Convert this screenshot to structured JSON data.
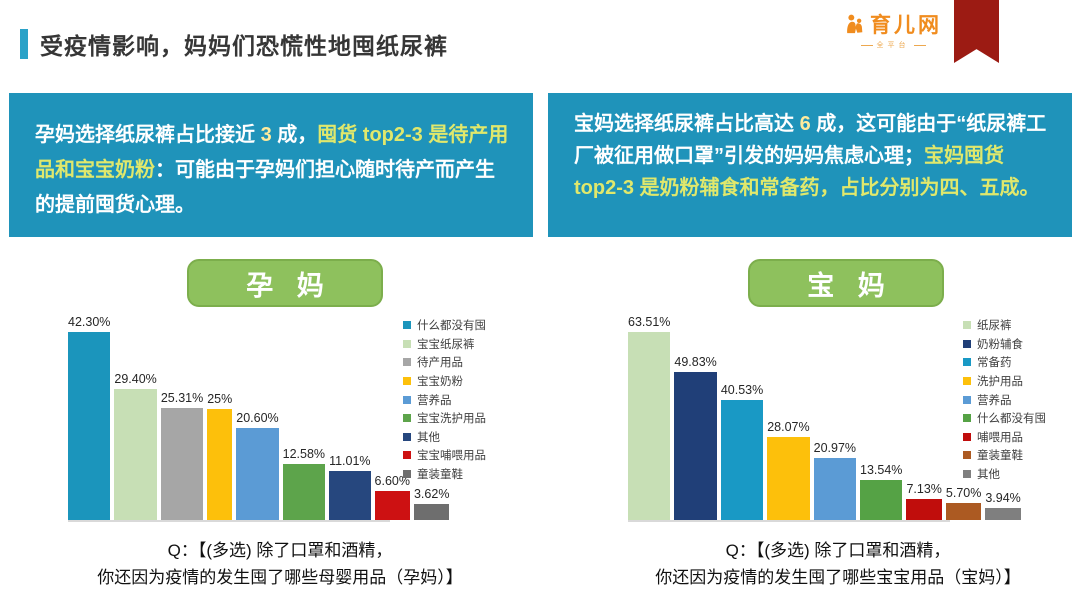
{
  "header": {
    "title": "受疫情影响，妈妈们恐慌性地囤纸尿裤",
    "logo_text": "育儿网",
    "logo_subtext": "全平台"
  },
  "colors": {
    "box_background": "#1f93ba",
    "title_accent": "#2aa2c8",
    "ribbon": "#9c1b13",
    "logo_orange": "#f08c1e",
    "pill_green": "#8ec15d",
    "highlight_yellow": "#ffeb9c",
    "highlight_greenyellow": "#e0e86c"
  },
  "insight_boxes": {
    "left": {
      "segments": [
        {
          "text": "孕妈选择纸尿裤占比接近 ",
          "color": "#ffffff"
        },
        {
          "text": "3",
          "color": "#ffeb9c"
        },
        {
          "text": " 成，",
          "color": "#ffffff"
        },
        {
          "text": "囤货 top2-3 是待产用品和宝宝奶粉",
          "color": "#e0e86c"
        },
        {
          "text": "：可能由于孕妈们担心随时待产而产生的提前囤货心理。",
          "color": "#ffffff"
        }
      ]
    },
    "right": {
      "segments": [
        {
          "text": "宝妈选择纸尿裤占比高达 ",
          "color": "#ffffff"
        },
        {
          "text": "6",
          "color": "#ffeb9c"
        },
        {
          "text": " 成，这可能由于“纸尿裤工厂被征用做口罩”引发的妈妈焦虑心理；",
          "color": "#ffffff"
        },
        {
          "text": "宝妈囤货 top2-3 是奶粉辅食和常备药，占比分别为四、五成。",
          "color": "#e0e86c"
        }
      ]
    }
  },
  "chart_data": [
    {
      "type": "bar",
      "title": "孕 妈",
      "categories": [
        "什么都没有囤",
        "宝宝纸尿裤",
        "待产用品",
        "宝宝奶粉",
        "营养品",
        "宝宝洗护用品",
        "其他",
        "宝宝哺喂用品",
        "童装童鞋"
      ],
      "values": [
        42.3,
        29.4,
        25.31,
        25,
        20.6,
        12.58,
        11.01,
        6.6,
        3.62
      ],
      "labels": [
        "42.30%",
        "29.40%",
        "25.31%",
        "25%",
        "20.60%",
        "12.58%",
        "11.01%",
        "6.60%",
        "3.62%"
      ],
      "colors": [
        "#1b95bc",
        "#c7dfb5",
        "#a6a6a6",
        "#fdc00b",
        "#5b9bd5",
        "#5da44b",
        "#26477e",
        "#cd1112",
        "#6e6e6e"
      ],
      "legend_position": "right",
      "grid": false,
      "caption_line1": "Q：【(多选) 除了口罩和酒精，",
      "caption_line2": "你还因为疫情的发生囤了哪些母婴用品（孕妈）】"
    },
    {
      "type": "bar",
      "title": "宝 妈",
      "categories": [
        "纸尿裤",
        "奶粉辅食",
        "常备药",
        "洗护用品",
        "营养品",
        "什么都没有囤",
        "哺喂用品",
        "童装童鞋",
        "其他"
      ],
      "values": [
        63.51,
        49.83,
        40.53,
        28.07,
        20.97,
        13.54,
        7.13,
        5.7,
        3.94
      ],
      "labels": [
        "63.51%",
        "49.83%",
        "40.53%",
        "28.07%",
        "20.97%",
        "13.54%",
        "7.13%",
        "5.70%",
        "3.94%"
      ],
      "colors": [
        "#c7dfb5",
        "#203f78",
        "#1999c5",
        "#fdc00b",
        "#5b9bd5",
        "#55a245",
        "#c00d0c",
        "#ac5a22",
        "#7f7f7f"
      ],
      "legend_position": "right",
      "grid": false,
      "caption_line1": "Q：【(多选) 除了口罩和酒精，",
      "caption_line2": "你还因为疫情的发生囤了哪些宝宝用品（宝妈）】"
    }
  ]
}
